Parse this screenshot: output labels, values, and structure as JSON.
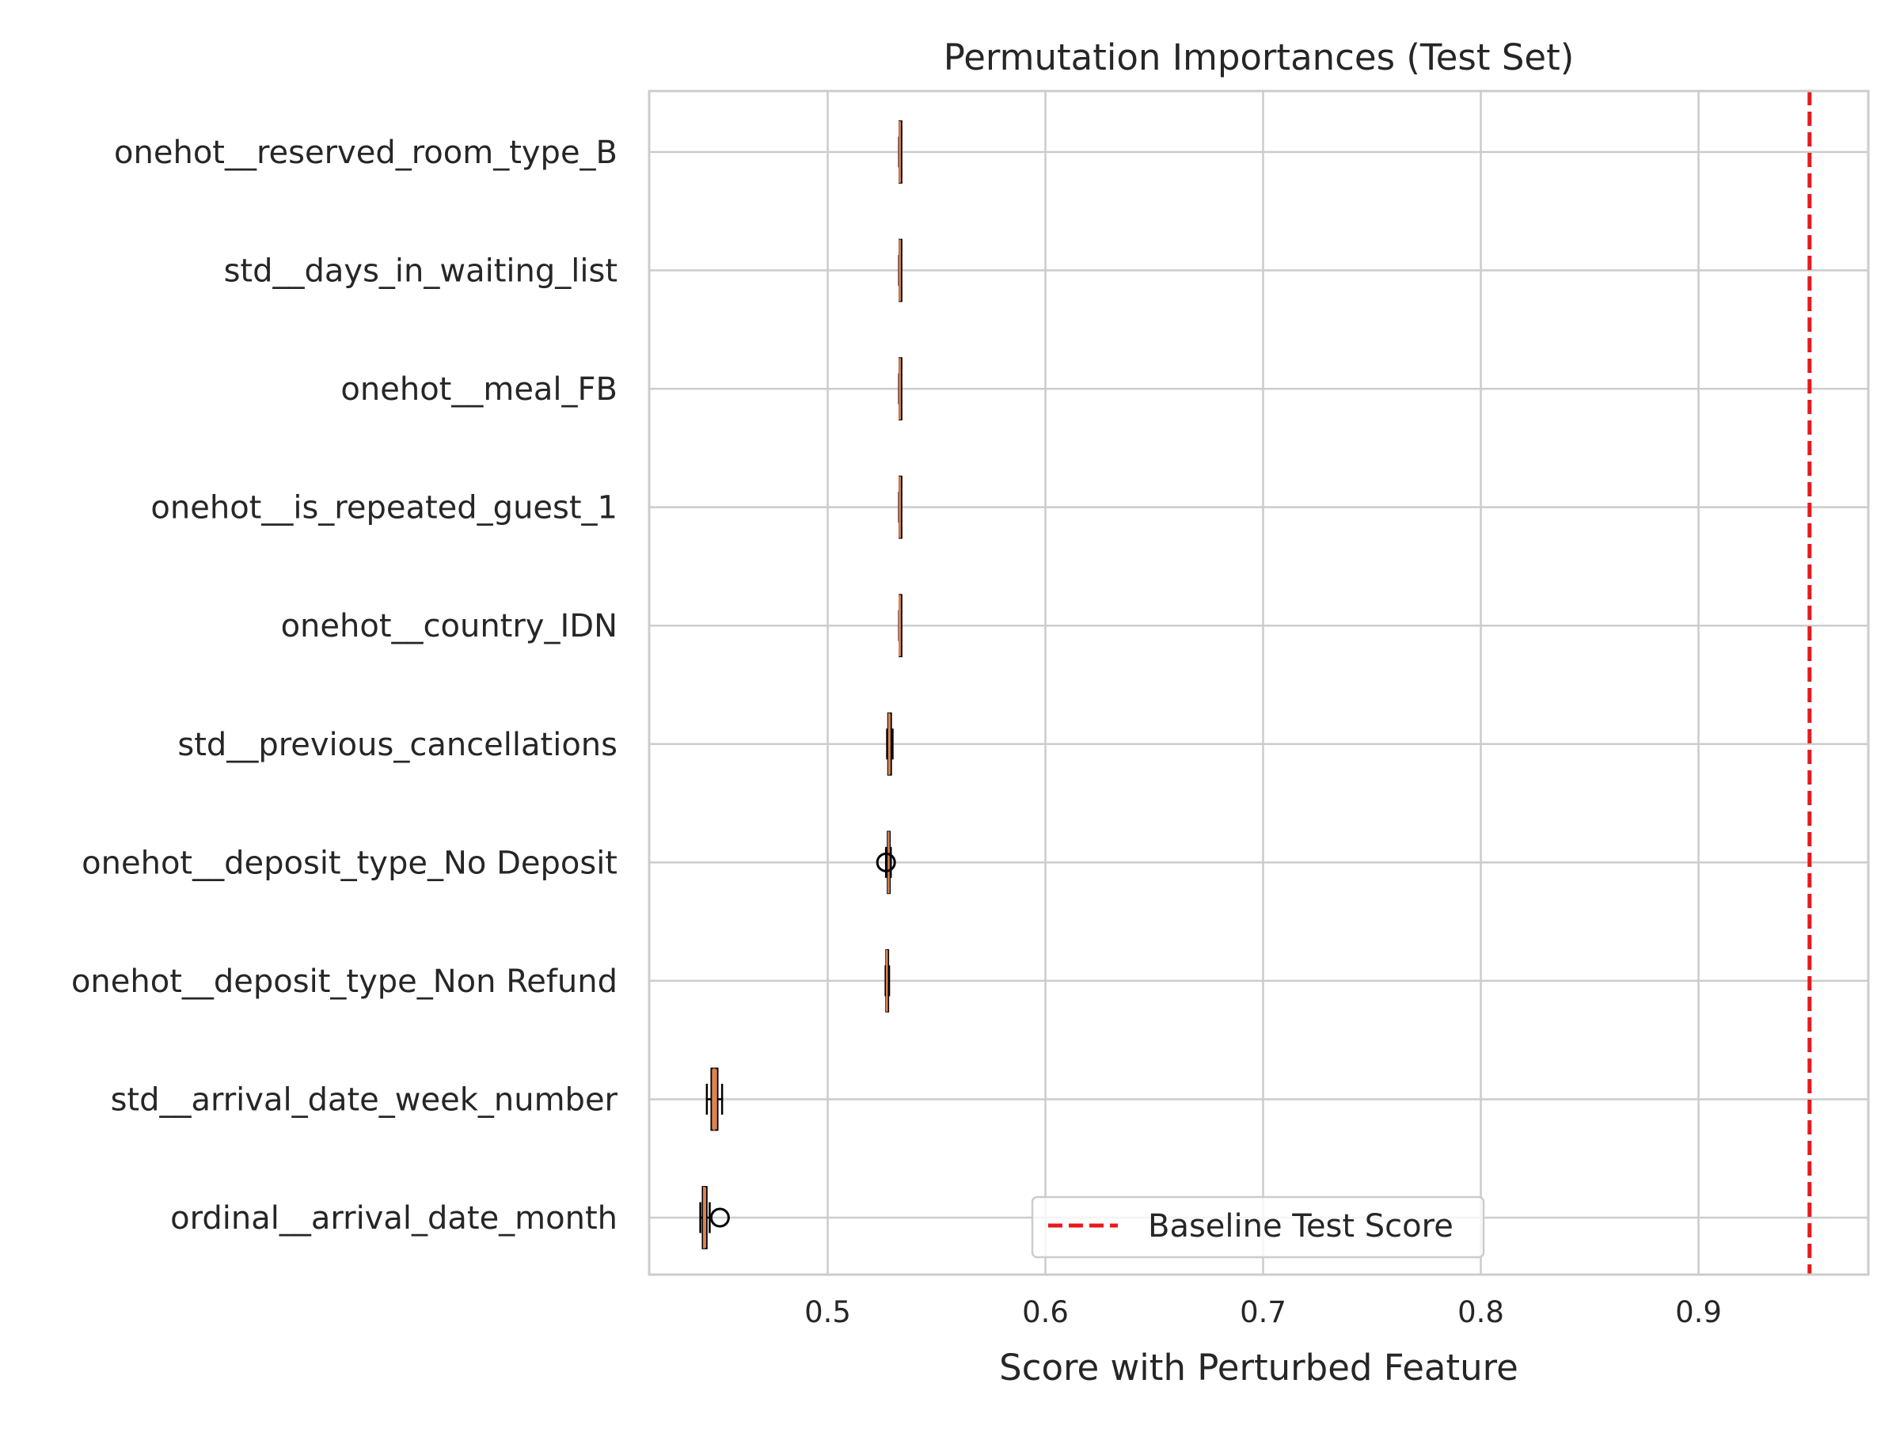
{
  "chart_data": {
    "type": "box",
    "orientation": "horizontal",
    "title": "Permutation Importances (Test Set)",
    "xlabel": "Score with Perturbed Feature",
    "ylabel": "",
    "xlim": [
      0.418,
      0.978
    ],
    "xticks": [
      0.5,
      0.6,
      0.7,
      0.8,
      0.9
    ],
    "xtick_labels": [
      "0.5",
      "0.6",
      "0.7",
      "0.8",
      "0.9"
    ],
    "grid": true,
    "categories": [
      "ordinal__arrival_date_month",
      "std__arrival_date_week_number",
      "onehot__deposit_type_Non Refund",
      "onehot__deposit_type_No Deposit",
      "std__previous_cancellations",
      "onehot__country_IDN",
      "onehot__is_repeated_guest_1",
      "onehot__meal_FB",
      "std__days_in_waiting_list",
      "onehot__reserved_room_type_B"
    ],
    "boxes": [
      {
        "whislo": 0.4415,
        "q1": 0.4425,
        "med": 0.4432,
        "q3": 0.4445,
        "whishi": 0.4458,
        "fliers": [
          0.4505
        ]
      },
      {
        "whislo": 0.4445,
        "q1": 0.4465,
        "med": 0.4478,
        "q3": 0.4495,
        "whishi": 0.4515,
        "fliers": []
      },
      {
        "whislo": 0.5266,
        "q1": 0.5268,
        "med": 0.5272,
        "q3": 0.5278,
        "whishi": 0.5282,
        "fliers": []
      },
      {
        "whislo": 0.5268,
        "q1": 0.5275,
        "med": 0.528,
        "q3": 0.5285,
        "whishi": 0.529,
        "fliers": [
          0.5268
        ]
      },
      {
        "whislo": 0.5273,
        "q1": 0.5277,
        "med": 0.5282,
        "q3": 0.5292,
        "whishi": 0.5298,
        "fliers": []
      },
      {
        "whislo": 0.5328,
        "q1": 0.5329,
        "med": 0.533,
        "q3": 0.5331,
        "whishi": 0.5332,
        "fliers": []
      },
      {
        "whislo": 0.5328,
        "q1": 0.5329,
        "med": 0.5331,
        "q3": 0.5333,
        "whishi": 0.5334,
        "fliers": []
      },
      {
        "whislo": 0.5328,
        "q1": 0.5329,
        "med": 0.5331,
        "q3": 0.5333,
        "whishi": 0.5334,
        "fliers": []
      },
      {
        "whislo": 0.5328,
        "q1": 0.5329,
        "med": 0.5331,
        "q3": 0.5333,
        "whishi": 0.5334,
        "fliers": []
      },
      {
        "whislo": 0.5328,
        "q1": 0.5329,
        "med": 0.5331,
        "q3": 0.5333,
        "whishi": 0.5334,
        "fliers": []
      }
    ],
    "baseline": {
      "value": 0.951,
      "label": "Baseline Test Score",
      "color": "#e8191c",
      "style": "dashed"
    },
    "legend": {
      "placement": "lower center",
      "entries": [
        "Baseline Test Score"
      ]
    },
    "colors": {
      "box_fill": "#dd8452",
      "box_edge": "#000000",
      "grid": "#cccccc",
      "spine": "#cccccc",
      "text": "#262626",
      "baseline": "#e8191c"
    }
  }
}
